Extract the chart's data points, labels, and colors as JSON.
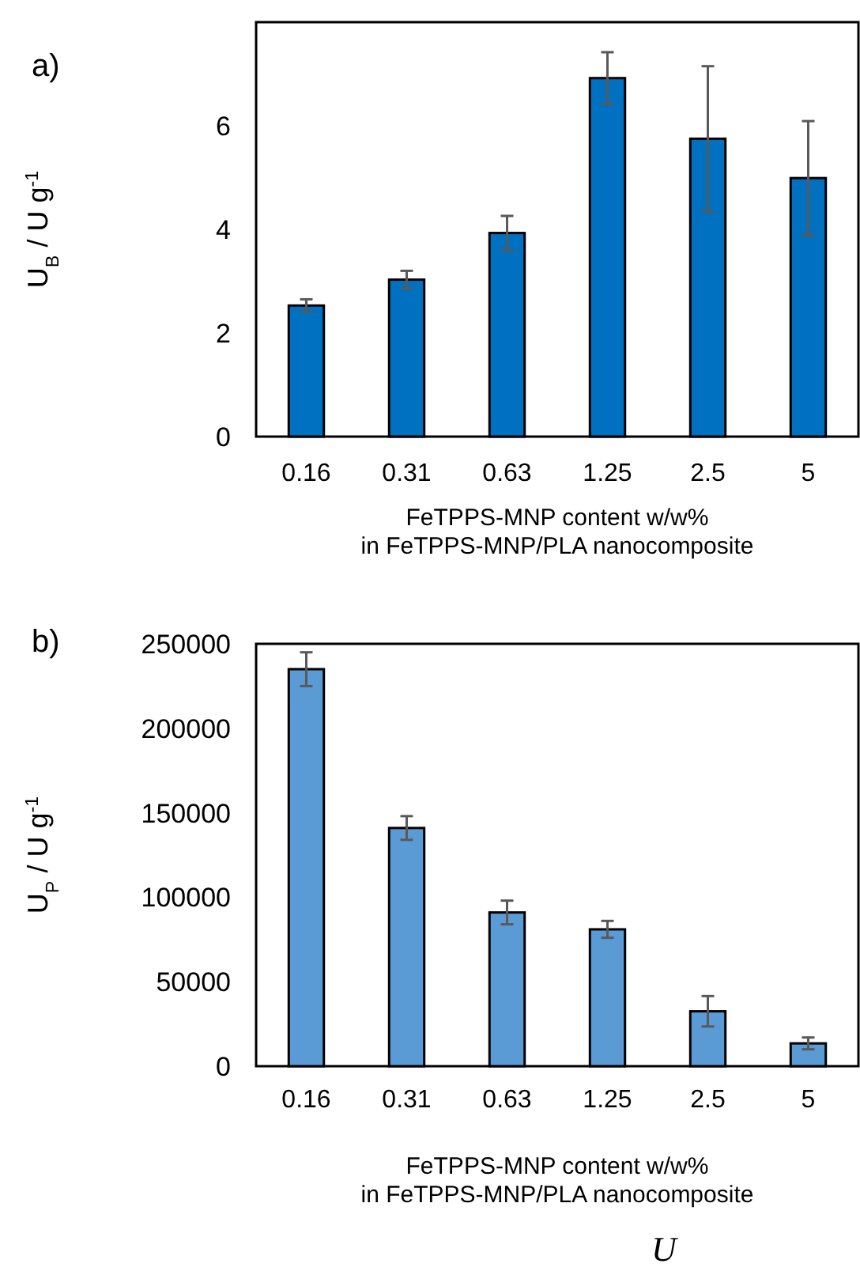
{
  "chart_data": [
    {
      "type": "bar",
      "title": "a)",
      "ylabel": "U$_{B}$ / U g$^{-1}$",
      "xlabel": "FeTPPS-MNP content w/w%\nin FeTPPS-MNP/PLA nanocomposite",
      "categories": [
        "0.16",
        "0.31",
        "0.63",
        "1.25",
        "2.5",
        "5"
      ],
      "values": [
        2.53,
        3.03,
        3.93,
        6.92,
        5.75,
        4.99
      ],
      "errors": [
        0.12,
        0.17,
        0.33,
        0.5,
        1.4,
        1.1
      ],
      "color": "#0070c0",
      "ylim": [
        0,
        8
      ],
      "yticks": [
        0,
        2,
        4,
        6
      ]
    },
    {
      "type": "bar",
      "title": "b)",
      "ylabel": "U$_{P}$ / U g$^{-1}$",
      "xlabel": "FeTPPS-MNP content w/w%\nin FeTPPS-MNP/PLA nanocomposite",
      "categories": [
        "0.16",
        "0.31",
        "0.63",
        "1.25",
        "2.5",
        "5"
      ],
      "values": [
        235000,
        141000,
        91000,
        81000,
        32500,
        13500
      ],
      "errors": [
        10000,
        7000,
        7000,
        5000,
        9000,
        3500
      ],
      "color": "#5b9bd5",
      "ylim": [
        0,
        250000
      ],
      "yticks": [
        0,
        50000,
        100000,
        150000,
        200000,
        250000
      ],
      "annotations": [
        "U"
      ]
    }
  ]
}
